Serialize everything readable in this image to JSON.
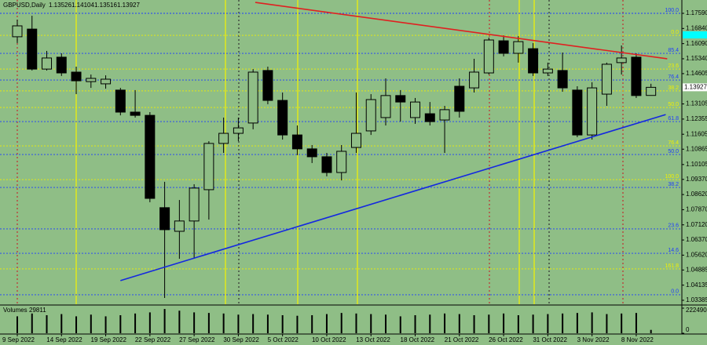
{
  "chart_data": {
    "type": "candlestick",
    "title": "GBPUSD,Daily",
    "categories": [
      "9 Sep 2022",
      null,
      null,
      "14 Sep 2022",
      null,
      null,
      "19 Sep 2022",
      null,
      null,
      "22 Sep 2022",
      null,
      null,
      "27 Sep 2022",
      null,
      null,
      "30 Sep 2022",
      null,
      null,
      "5 Oct 2022",
      null,
      null,
      "10 Oct 2022",
      null,
      null,
      "13 Oct 2022",
      null,
      null,
      "18 Oct 2022",
      null,
      null,
      "21 Oct 2022",
      null,
      null,
      "26 Oct 2022",
      null,
      null,
      "31 Oct 2022",
      null,
      null,
      "3 Nov 2022",
      null,
      null,
      "8 Nov 2022",
      null
    ],
    "open": [
      1.1643,
      1.1681,
      1.1483,
      1.1542,
      1.1468,
      1.1421,
      1.141,
      1.1379,
      1.127,
      1.1254,
      1.0797,
      1.068,
      1.0731,
      1.0886,
      1.1115,
      1.1165,
      1.1216,
      1.1476,
      1.1328,
      1.1157,
      1.1088,
      1.1049,
      1.0971,
      1.1095,
      1.1177,
      1.1243,
      1.1352,
      1.1243,
      1.1262,
      1.1231,
      1.1398,
      1.139,
      1.1464,
      1.1623,
      1.1561,
      1.1584,
      1.1464,
      1.1476,
      1.1379,
      1.1157,
      1.1359,
      1.1515,
      1.1542,
      1.13526
    ],
    "high": [
      1.1728,
      1.1747,
      1.1573,
      1.1561,
      1.1495,
      1.1456,
      1.1452,
      1.139,
      1.1379,
      1.127,
      1.0925,
      1.0835,
      1.0913,
      1.1126,
      1.1243,
      1.1243,
      1.1483,
      1.1495,
      1.1367,
      1.1204,
      1.1107,
      1.1068,
      1.1107,
      1.1367,
      1.1359,
      1.1437,
      1.1379,
      1.134,
      1.132,
      1.1301,
      1.1437,
      1.1534,
      1.1639,
      1.165,
      1.1646,
      1.1612,
      1.1515,
      1.1565,
      1.1398,
      1.1418,
      1.1515,
      1.16,
      1.1561,
      1.14104
    ],
    "low": [
      1.1612,
      1.1476,
      1.1476,
      1.1449,
      1.1359,
      1.139,
      1.1386,
      1.1254,
      1.1243,
      1.0824,
      1.035,
      1.0544,
      1.0544,
      1.0738,
      1.1068,
      1.1126,
      1.1185,
      1.1309,
      1.1134,
      1.1057,
      1.1018,
      1.0952,
      1.0932,
      1.1068,
      1.1157,
      1.1204,
      1.1223,
      1.1212,
      1.1204,
      1.1068,
      1.1243,
      1.1367,
      1.1456,
      1.1546,
      1.1515,
      1.1449,
      1.1449,
      1.1371,
      1.1146,
      1.1134,
      1.1301,
      1.1456,
      1.134,
      1.13516
    ],
    "close": [
      1.1697,
      1.1483,
      1.1538,
      1.1464,
      1.1425,
      1.1437,
      1.1433,
      1.127,
      1.1254,
      1.0843,
      1.0688,
      1.0731,
      1.0894,
      1.1115,
      1.1165,
      1.1192,
      1.1468,
      1.1328,
      1.1157,
      1.1088,
      1.1049,
      1.0971,
      1.1076,
      1.1165,
      1.1332,
      1.1352,
      1.132,
      1.132,
      1.1223,
      1.1282,
      1.1274,
      1.1468,
      1.1627,
      1.1561,
      1.1619,
      1.1464,
      1.1483,
      1.139,
      1.1157,
      1.139,
      1.1507,
      1.1538,
      1.1352,
      1.13927
    ],
    "up_color": "#8fbe86",
    "down_color": "#000000",
    "outline_color": "#000000",
    "ylim": [
      1.0319,
      1.1825
    ],
    "yticks": [
      {
        "value": 1.1759,
        "label": "1.17590"
      },
      {
        "value": 1.1684,
        "label": "1.16840"
      },
      {
        "value": 1.1609,
        "label": "1.16090"
      },
      {
        "value": 1.1534,
        "label": "1.15340"
      },
      1.14605,
      1.13105,
      1.12355,
      1.11605,
      1.10865,
      1.10105,
      {
        "value": 1.0937,
        "label": "1.09370"
      },
      {
        "value": 1.0862,
        "label": "1.08620"
      },
      {
        "value": 1.0787,
        "label": "1.07870"
      },
      {
        "value": 1.0712,
        "label": "1.07120"
      },
      {
        "value": 1.0637,
        "label": "1.06370"
      },
      {
        "value": 1.0562,
        "label": "1.05620"
      },
      1.04885,
      1.04135,
      1.03385
    ],
    "fib_levels": [
      {
        "label": "100.0",
        "value": 1.1759,
        "color": "#1e3cff"
      },
      {
        "label": "0.0",
        "value": 1.165,
        "color": "#f0f000"
      },
      {
        "label": "85.4",
        "value": 1.1561,
        "color": "#1e3cff"
      },
      {
        "label": "23.6",
        "value": 1.1483,
        "color": "#f0f000"
      },
      {
        "label": "76.4",
        "value": 1.1429,
        "color": "#1e3cff"
      },
      {
        "label": "38.2",
        "value": 1.1375,
        "color": "#f0f000"
      },
      {
        "label": "50.0",
        "value": 1.1293,
        "color": "#f0f000"
      },
      {
        "label": "61.8",
        "value": 1.1223,
        "color": "#1e3cff"
      },
      {
        "label": "76.4",
        "value": 1.1103,
        "color": "#f0f000"
      },
      {
        "label": "50.0",
        "value": 1.106,
        "color": "#1e3cff"
      },
      {
        "label": "100.0",
        "value": 1.0936,
        "color": "#f0f000"
      },
      {
        "label": "38.2",
        "value": 1.0897,
        "color": "#1e3cff"
      },
      {
        "label": "23.6",
        "value": 1.0692,
        "color": "#1e3cff"
      },
      {
        "label": "14.6",
        "value": 1.0571,
        "color": "#1e3cff"
      },
      {
        "label": "161.8",
        "value": 1.0494,
        "color": "#f0f000"
      },
      {
        "label": "0.0",
        "value": 1.0366,
        "color": "#1e3cff"
      }
    ],
    "trendlines": [
      {
        "color": "#e02020",
        "x": [
          16.15,
          44.1
        ],
        "y": [
          1.1813,
          1.1534
        ]
      },
      {
        "color": "#1428e0",
        "x": [
          7,
          44
        ],
        "y": [
          1.0436,
          1.1258
        ]
      }
    ],
    "volume": {
      "title": "Volumes",
      "color": "#000000",
      "values": [
        150000,
        175000,
        160000,
        170000,
        150000,
        165000,
        150000,
        160000,
        175000,
        185000,
        215000,
        200000,
        185000,
        180000,
        175000,
        165000,
        170000,
        165000,
        160000,
        155000,
        160000,
        170000,
        180000,
        175000,
        170000,
        165000,
        150000,
        160000,
        165000,
        175000,
        170000,
        160000,
        165000,
        175000,
        160000,
        165000,
        170000,
        175000,
        180000,
        185000,
        170000,
        175000,
        180000,
        29811
      ],
      "ylim": [
        0,
        222490
      ],
      "yticks": [
        0,
        222490
      ]
    }
  }
}
